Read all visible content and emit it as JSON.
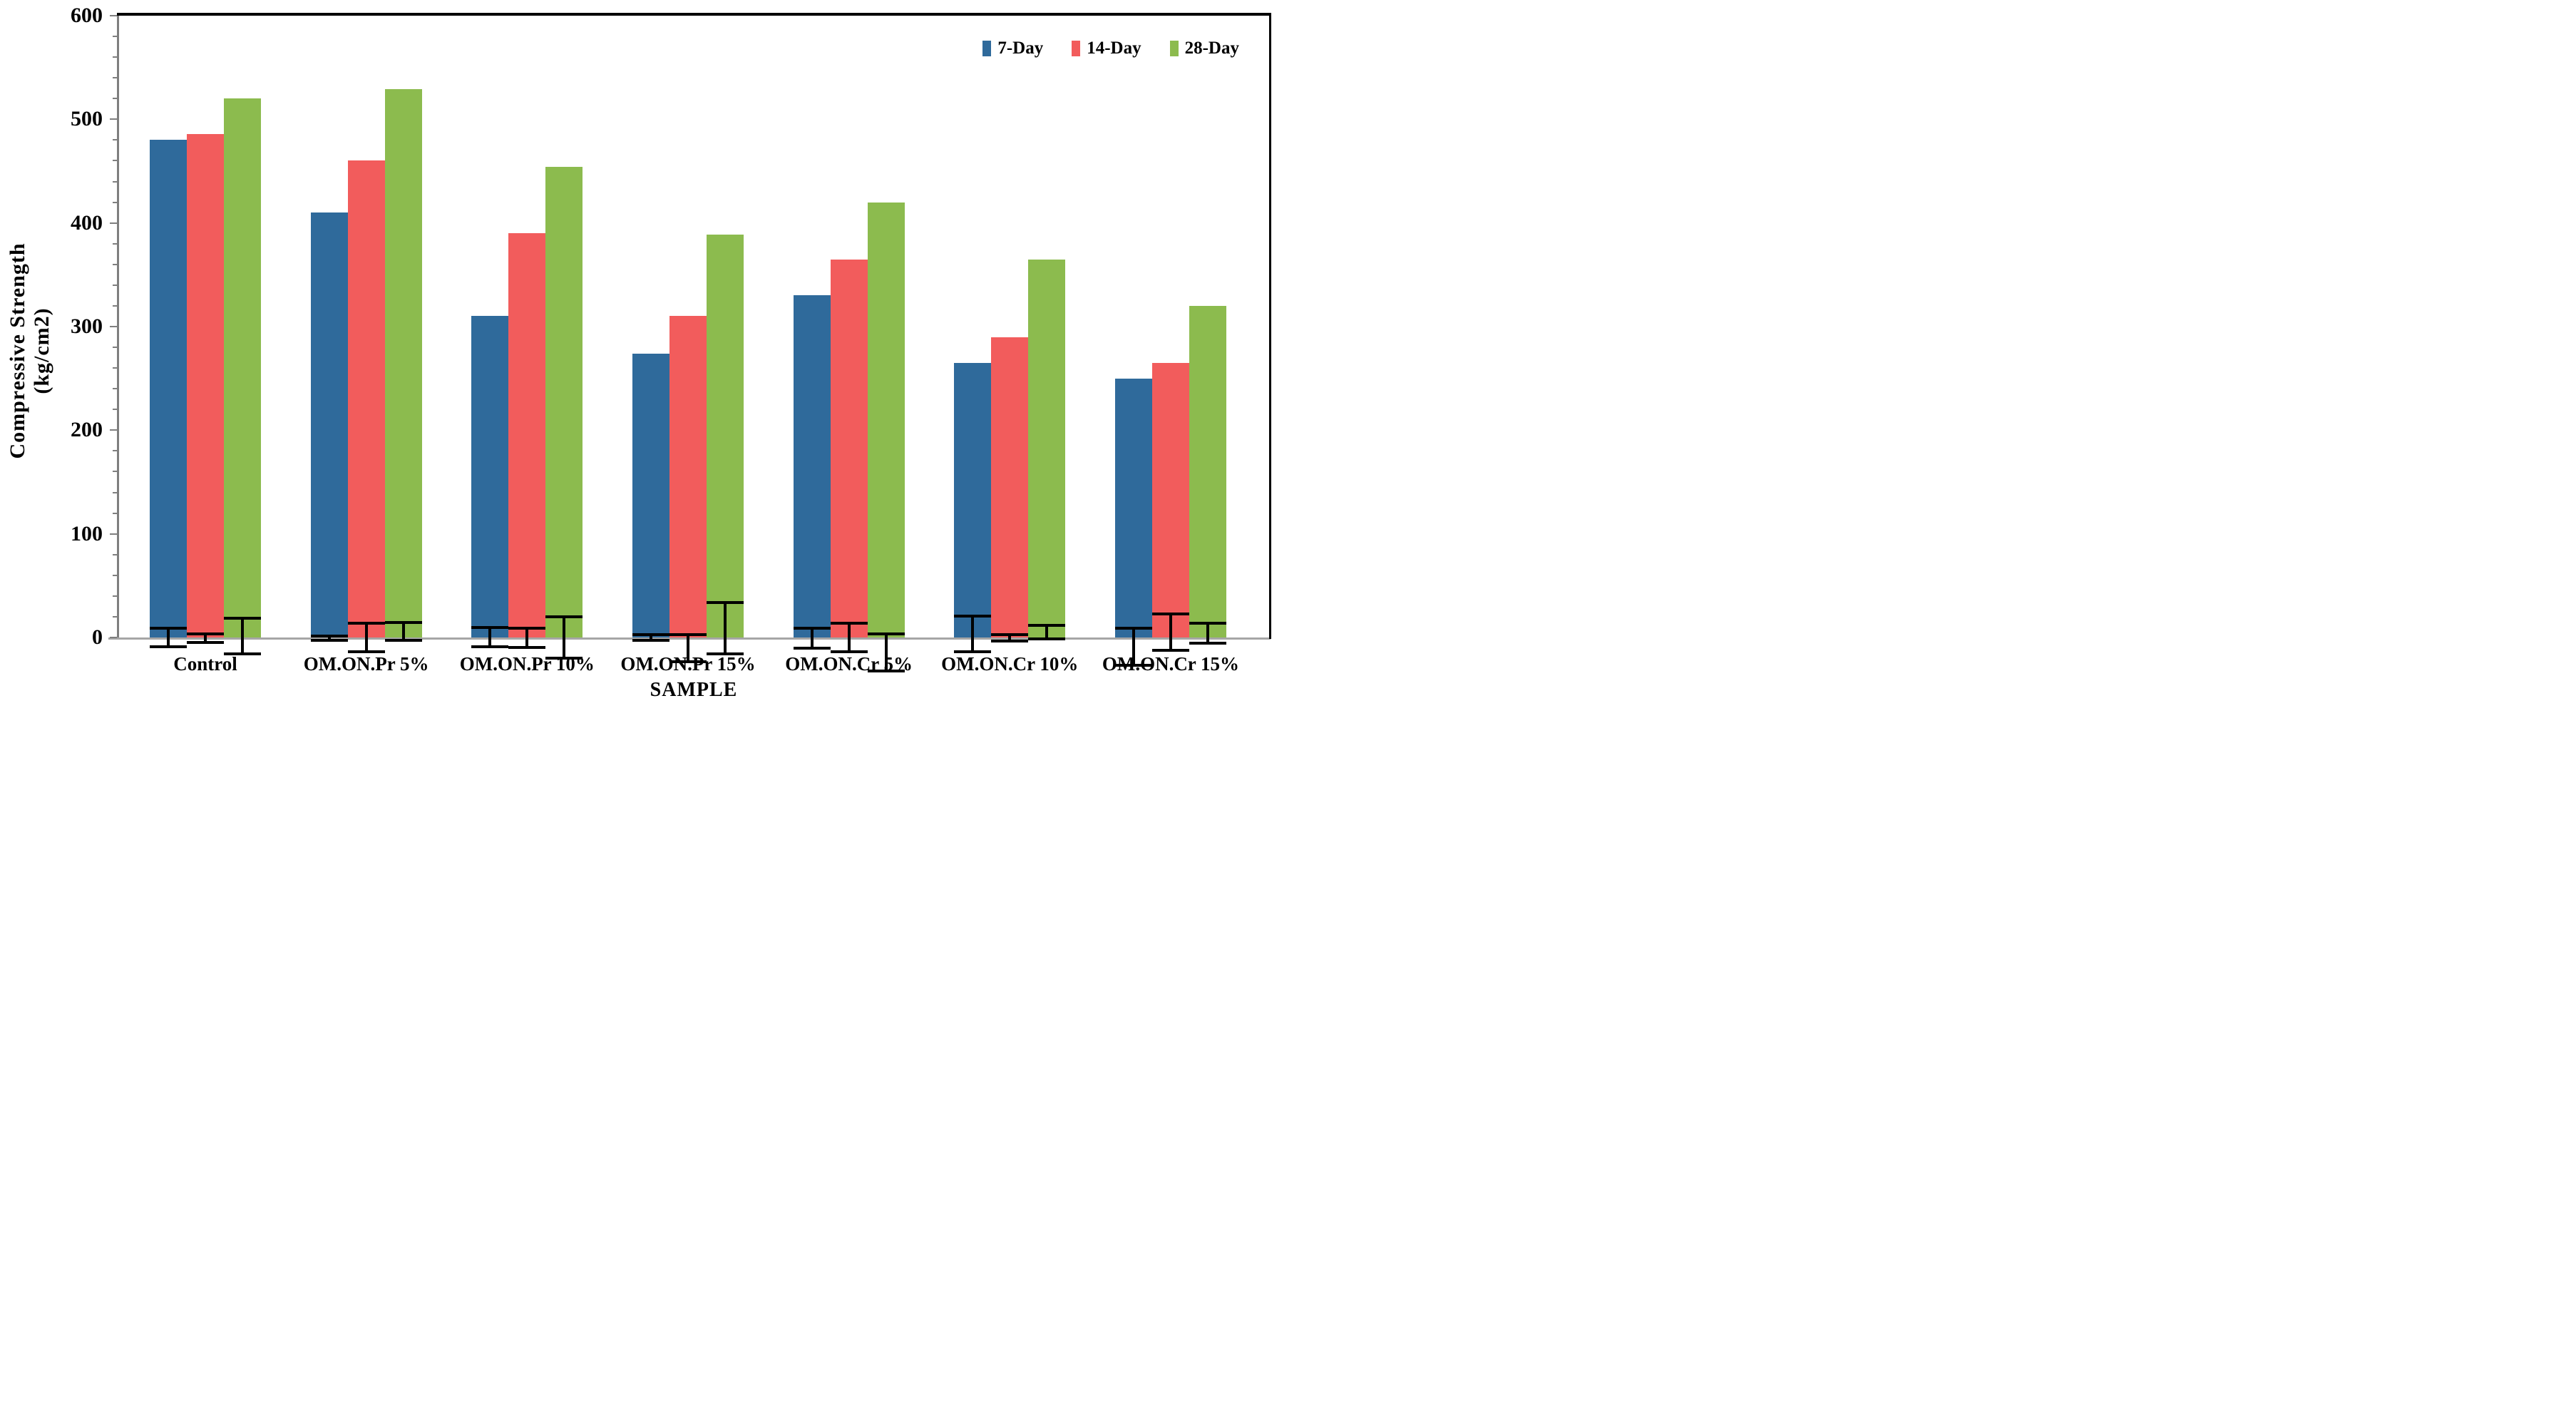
{
  "chart_data": {
    "type": "bar",
    "title": "",
    "xlabel": "SAMPLE",
    "ylabel": "Compressive Strength (kg/cm2)",
    "categories": [
      "Control",
      "OM.ON.Pr 5%",
      "OM.ON.Pr 10%",
      "OM.ON.Pr 15%",
      "OM.ON.Cr 5%",
      "OM.ON.Cr 10%",
      "OM.ON.Cr 15%"
    ],
    "series": [
      {
        "name": "7-Day",
        "color": "#2F6A9B",
        "values": [
          480,
          410,
          310,
          274,
          330,
          265,
          250
        ],
        "err_plus": [
          10,
          3,
          11,
          4,
          10,
          22,
          10
        ],
        "err_minus": [
          10,
          4,
          10,
          4,
          12,
          15,
          28
        ]
      },
      {
        "name": "14-Day",
        "color": "#F25C5C",
        "values": [
          486,
          460,
          390,
          310,
          365,
          290,
          265
        ],
        "err_plus": [
          5,
          15,
          10,
          4,
          15,
          4,
          24
        ],
        "err_minus": [
          6,
          15,
          11,
          25,
          15,
          5,
          14
        ]
      },
      {
        "name": "28-Day",
        "color": "#8CBB4E",
        "values": [
          520,
          529,
          454,
          389,
          420,
          365,
          320
        ],
        "err_plus": [
          20,
          16,
          21,
          35,
          5,
          13,
          15
        ],
        "err_minus": [
          17,
          4,
          21,
          17,
          34,
          3,
          7
        ]
      }
    ],
    "ylim": [
      0,
      600
    ],
    "ytick_major": 100,
    "ytick_minor": 20,
    "grid": false,
    "legend_position": "top-right",
    "error_bars": true
  },
  "style_colors": {
    "axis_gray": "#7F7F7F",
    "border_black": "#000000",
    "error_black": "#000000",
    "background": "#FFFFFF"
  }
}
